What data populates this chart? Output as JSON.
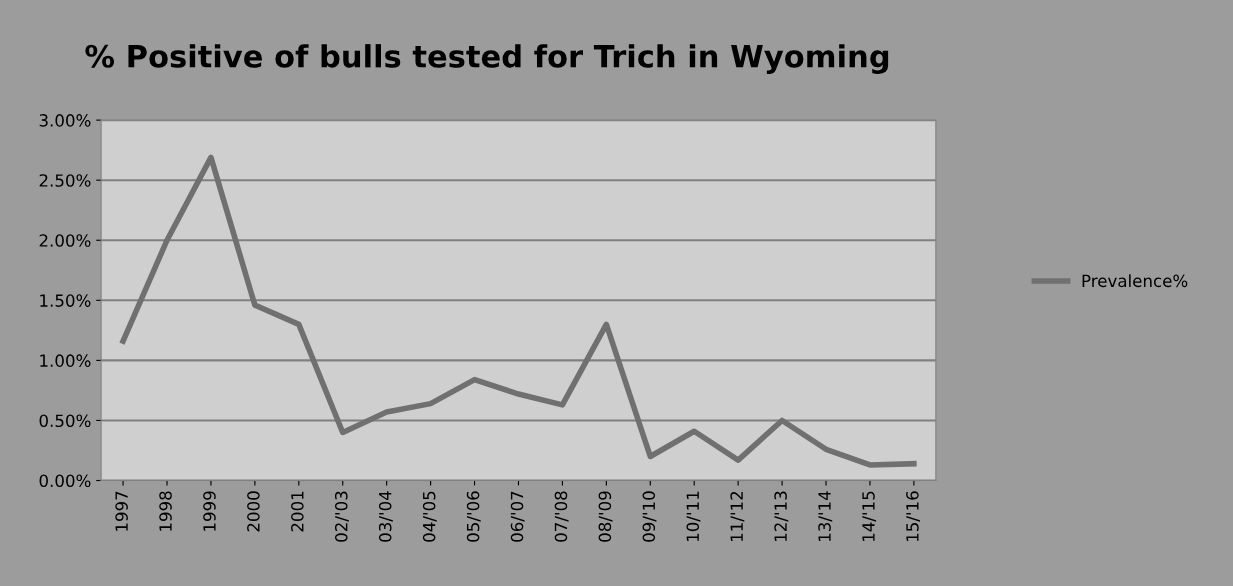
{
  "chart_data": {
    "type": "line",
    "title": "% Positive of bulls tested for Trich in Wyoming",
    "categories": [
      "1997",
      "1998",
      "1999",
      "2000",
      "2001",
      "02/'03",
      "03/'04",
      "04/'05",
      "05/'06",
      "06/'07",
      "07/'08",
      "08/'09",
      "09/'10",
      "10/'11",
      "11/'12",
      "12/'13",
      "13/'14",
      "14/'15",
      "15/'16"
    ],
    "series": [
      {
        "name": "Prevalence%",
        "color": "#707070",
        "values": [
          1.16,
          2.0,
          2.69,
          1.46,
          1.3,
          0.4,
          0.57,
          0.64,
          0.84,
          0.72,
          0.63,
          1.3,
          0.2,
          0.41,
          0.17,
          0.5,
          0.26,
          0.13,
          0.14
        ]
      }
    ],
    "ylim": [
      0,
      3
    ],
    "yticks": [
      {
        "value": 0,
        "label": "0.00%"
      },
      {
        "value": 0.5,
        "label": "0.50%"
      },
      {
        "value": 1,
        "label": "1.00%"
      },
      {
        "value": 1.5,
        "label": "1.50%"
      },
      {
        "value": 2,
        "label": "2.00%"
      },
      {
        "value": 2.5,
        "label": "2.50%"
      },
      {
        "value": 3,
        "label": "3.00%"
      }
    ],
    "grid": "y",
    "legend": "right",
    "marker": "none",
    "line_style": "solid"
  }
}
